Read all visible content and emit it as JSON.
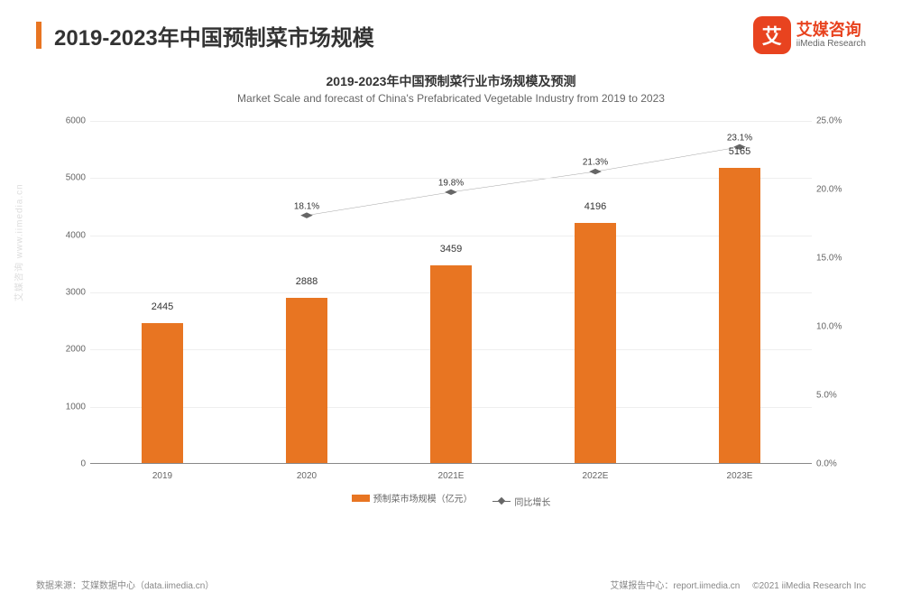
{
  "header": {
    "title": "2019-2023年中国预制菜市场规模",
    "logo_cn": "艾媒咨询",
    "logo_en": "iiMedia Research",
    "logo_badge": "艾"
  },
  "chart": {
    "type": "bar+line",
    "title_cn": "2019-2023年中国预制菜行业市场规模及预测",
    "title_en": "Market Scale and forecast of China's Prefabricated Vegetable Industry from 2019 to 2023",
    "categories": [
      "2019",
      "2020",
      "2021E",
      "2022E",
      "2023E"
    ],
    "bar_values": [
      2445,
      2888,
      3459,
      4196,
      5165
    ],
    "line_values": [
      null,
      18.1,
      19.8,
      21.3,
      23.1
    ],
    "bar_color": "#e87522",
    "line_color": "#666666",
    "left_axis": {
      "min": 0,
      "max": 6000,
      "step": 1000
    },
    "right_axis": {
      "min": 0,
      "max": 25,
      "step": 5,
      "suffix": "%"
    },
    "background_color": "#ffffff",
    "legend": {
      "bar_label": "预制菜市场规模（亿元）",
      "line_label": "同比增长"
    }
  },
  "footer": {
    "source": "数据来源：艾媒数据中心（data.iimedia.cn）",
    "report_site": "艾媒报告中心：report.iimedia.cn",
    "copyright": "©2021  iiMedia Research Inc"
  },
  "watermark": "艾媒咨询  www.iimedia.cn"
}
